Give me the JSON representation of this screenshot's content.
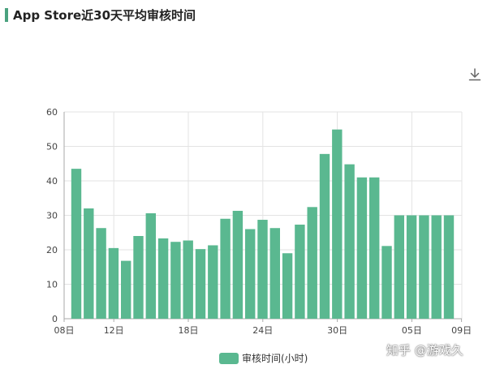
{
  "title": "App Store近30天平均审核时间",
  "colors": {
    "bar": "#5ab890",
    "title_accent": "#4aa27f",
    "grid": "#e3e3e3",
    "axis": "#aaaaaa"
  },
  "icons": {
    "download": "download-icon"
  },
  "watermark": "知乎 @游戏久",
  "chart_data": {
    "type": "bar",
    "title": "App Store近30天平均审核时间",
    "xlabel": "",
    "ylabel": "",
    "ylim": [
      0,
      60
    ],
    "yticks": [
      "0",
      "10",
      "20",
      "30",
      "40",
      "50",
      "60"
    ],
    "xticks": [
      "08日",
      "12日",
      "18日",
      "24日",
      "30日",
      "05日",
      "09日"
    ],
    "xlim": [
      "08日",
      "09日"
    ],
    "grid": true,
    "legend_position": "bottom-center",
    "series": [
      {
        "name": "审核时间(小时)",
        "values": [
          43.5,
          32,
          26.3,
          20.5,
          16.8,
          24,
          30.6,
          23.3,
          22.3,
          22.7,
          20.2,
          21.3,
          29,
          31.3,
          26,
          28.7,
          26.3,
          19,
          27.3,
          32.4,
          47.8,
          54.9,
          44.8,
          41,
          41,
          21.1,
          30,
          30,
          30,
          30,
          30
        ]
      }
    ]
  }
}
